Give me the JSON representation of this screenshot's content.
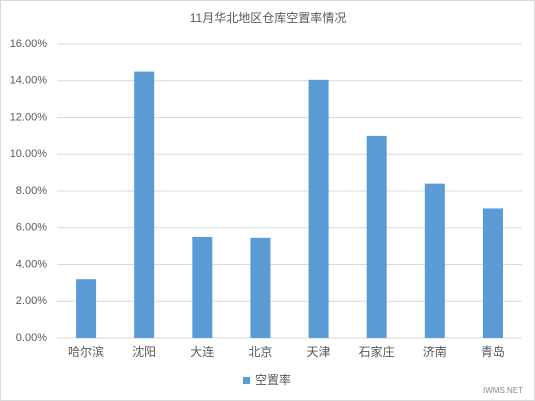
{
  "chart_data": {
    "type": "bar",
    "title": "11月华北地区仓库空置率情况",
    "categories": [
      "哈尔滨",
      "沈阳",
      "大连",
      "北京",
      "天津",
      "石家庄",
      "济南",
      "青岛"
    ],
    "series": [
      {
        "name": "空置率",
        "color": "#5b9bd5",
        "values": [
          3.2,
          14.5,
          5.5,
          5.45,
          14.05,
          11.0,
          8.4,
          7.05
        ]
      }
    ],
    "ylim": [
      0,
      16
    ],
    "yticks": [
      {
        "value": 0,
        "label": "0.00%"
      },
      {
        "value": 2,
        "label": "2.00%"
      },
      {
        "value": 4,
        "label": "4.00%"
      },
      {
        "value": 6,
        "label": "6.00%"
      },
      {
        "value": 8,
        "label": "8.00%"
      },
      {
        "value": 10,
        "label": "10.00%"
      },
      {
        "value": 12,
        "label": "12.00%"
      },
      {
        "value": 14,
        "label": "14.00%"
      },
      {
        "value": 16,
        "label": "16.00%"
      }
    ],
    "grid": true,
    "legend": "bottom",
    "watermark": "IWMS.NET"
  }
}
